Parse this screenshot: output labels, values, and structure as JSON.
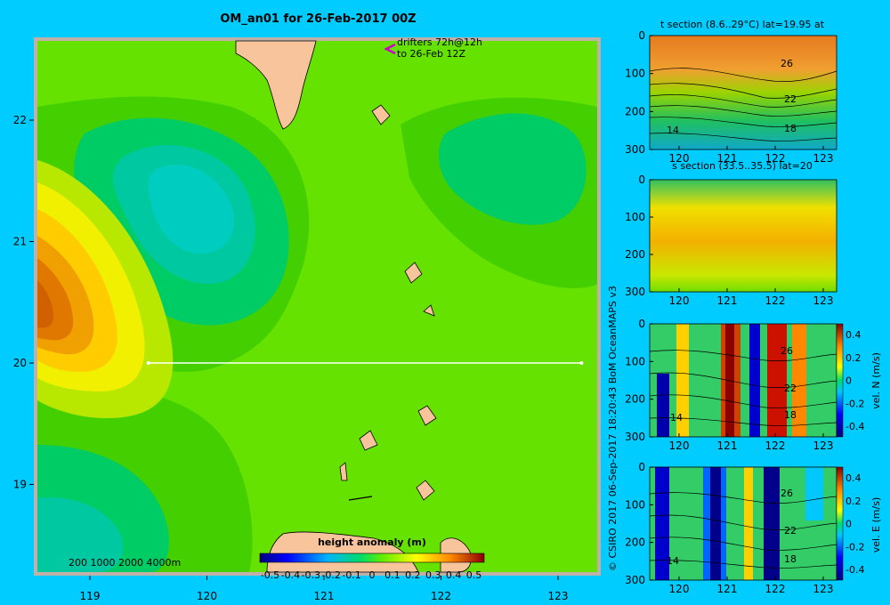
{
  "title": "OM_an01 for 26-Feb-2017 00Z",
  "drifter_note": [
    "drifters 72h@12h",
    "to 26-Feb 12Z"
  ],
  "scale_note": "200  1000  2000  4000m",
  "credit": "© CSIRO 2017   06-Sep-2017 18:20:43 BoM OceanMAPS v3",
  "colors": {
    "background": "#00ccff",
    "land": "#f8c49c",
    "section_line": "#ffffff",
    "drifter": "#cc00cc"
  },
  "chart_data": [
    {
      "type": "heatmap",
      "title": "OM_an01 for 26-Feb-2017 00Z",
      "colorbar_label": "height anomaly (m)",
      "colorbar_ticks": [
        "-0.5",
        "-0.4",
        "-0.3",
        "-0.2",
        "-0.1",
        "0",
        "0.1",
        "0.2",
        "0.3",
        "0.4",
        "0.5"
      ],
      "x_ticks": [
        "119",
        "120",
        "121",
        "122",
        "123"
      ],
      "y_ticks": [
        "22",
        "21",
        "20",
        "19"
      ],
      "xlim": [
        118.5,
        123.5
      ],
      "ylim": [
        18.3,
        22.7
      ],
      "section_line": {
        "lat": 20,
        "lon_start": 119.5,
        "lon_end": 123.2
      },
      "anomaly_centers": [
        {
          "lon": 118.6,
          "lat": 20.5,
          "value": 0.3
        },
        {
          "lon": 119.8,
          "lat": 21.4,
          "value": -0.1
        },
        {
          "lon": 122.3,
          "lat": 21.8,
          "value": -0.02
        },
        {
          "lon": 118.8,
          "lat": 18.6,
          "value": -0.08
        }
      ]
    },
    {
      "type": "heatmap",
      "title": "t section (8.6..29°C) lat=19.95 at",
      "x_ticks": [
        "120",
        "121",
        "122",
        "123"
      ],
      "y_ticks": [
        "0",
        "100",
        "200",
        "300"
      ],
      "contour_labels": [
        "26",
        "22",
        "18",
        "14"
      ]
    },
    {
      "type": "heatmap",
      "title": "s section (33.5..35.5) lat=20",
      "x_ticks": [
        "120",
        "121",
        "122",
        "123"
      ],
      "y_ticks": [
        "0",
        "100",
        "200",
        "300"
      ]
    },
    {
      "type": "heatmap",
      "title": "",
      "colorbar_label": "vel. N (m/s)",
      "colorbar_ticks": [
        "0.4",
        "0.2",
        "0",
        "-0.2",
        "-0.4"
      ],
      "x_ticks": [
        "120",
        "121",
        "122",
        "123"
      ],
      "y_ticks": [
        "0",
        "100",
        "200",
        "300"
      ],
      "contour_labels": [
        "26",
        "22",
        "18",
        "14"
      ]
    },
    {
      "type": "heatmap",
      "title": "",
      "colorbar_label": "vel. E (m/s)",
      "colorbar_ticks": [
        "0.4",
        "0.2",
        "0",
        "-0.2",
        "-0.4"
      ],
      "x_ticks": [
        "120",
        "121",
        "122",
        "123"
      ],
      "y_ticks": [
        "0",
        "100",
        "200",
        "300"
      ],
      "contour_labels": [
        "26",
        "22",
        "18",
        "14"
      ]
    }
  ]
}
